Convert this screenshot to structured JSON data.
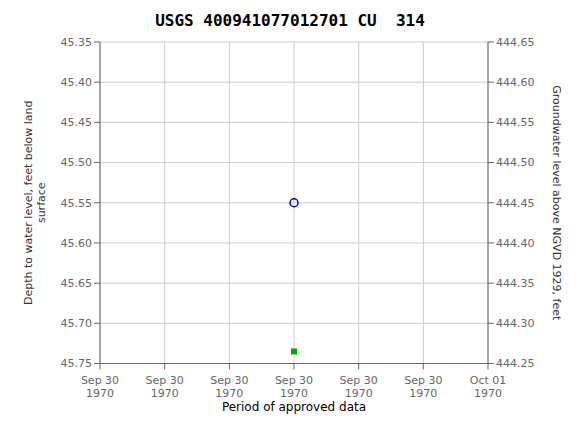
{
  "chart_data": {
    "type": "scatter",
    "title": "USGS 400941077012701 CU  314",
    "ylabel": "Depth to water level, feet below land\nsurface",
    "y2label": "Groundwater level above NGVD 1929, feet",
    "categories": [
      "Sep 30\n1970",
      "Sep 30\n1970",
      "Sep 30\n1970",
      "Sep 30\n1970",
      "Sep 30\n1970",
      "Sep 30\n1970",
      "Oct 01\n1970"
    ],
    "ylim": [
      45.75,
      45.35
    ],
    "yticks": [
      45.35,
      {
        "value": 45.4,
        "label": "45.40"
      },
      45.45,
      {
        "value": 45.5,
        "label": "45.50"
      },
      45.55,
      {
        "value": 45.6,
        "label": "45.60"
      },
      45.65,
      {
        "value": 45.7,
        "label": "45.70"
      },
      45.75
    ],
    "y2lim": [
      444.25,
      444.65
    ],
    "y2ticks": [
      444.65,
      {
        "value": 444.6,
        "label": "444.60"
      },
      444.55,
      {
        "value": 444.5,
        "label": "444.50"
      },
      444.45,
      {
        "value": 444.4,
        "label": "444.40"
      },
      444.35,
      {
        "value": 444.3,
        "label": "444.30"
      },
      444.25
    ],
    "grid": true,
    "legend": "bottom",
    "series": [
      {
        "color": "#0000cc",
        "marker": "circle",
        "values": [
          null,
          null,
          null,
          45.55,
          null,
          null,
          null
        ]
      },
      {
        "name": "Period of approved data",
        "color": "#00aa00",
        "marker": "square",
        "values": [
          null,
          null,
          null,
          45.735,
          null,
          null,
          null
        ]
      }
    ]
  }
}
